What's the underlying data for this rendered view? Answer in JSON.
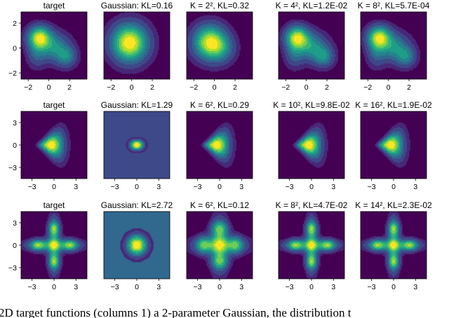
{
  "caption": "2D target functions (columns 1) a 2-parameter Gaussian, the distribution t",
  "colors": {
    "viridis": [
      "#440154",
      "#482878",
      "#3e4989",
      "#31688e",
      "#26828e",
      "#1f9e89",
      "#35b779",
      "#6ece58",
      "#b5de2b",
      "#fde725"
    ]
  },
  "chart_data": [
    {
      "type": "heatmap",
      "row": 1,
      "xlim": [
        -2.7,
        3.7
      ],
      "ylim": [
        -2.5,
        2.9
      ],
      "xticks": [
        -2,
        0,
        2
      ],
      "yticks": [
        -2,
        0,
        2
      ],
      "panels": [
        {
          "title": "target",
          "blobs": [
            {
              "cx": -0.9,
              "cy": 0.85,
              "sx": 0.75,
              "sy": 0.6,
              "a": 1.0
            },
            {
              "cx": 0.5,
              "cy": 0.05,
              "sx": 1.0,
              "sy": 0.75,
              "a": 0.5
            },
            {
              "cx": 1.7,
              "cy": -0.7,
              "sx": 0.65,
              "sy": 0.55,
              "a": 0.42
            },
            {
              "cx": -1.2,
              "cy": -0.4,
              "sx": 0.6,
              "sy": 0.75,
              "a": 0.28
            }
          ]
        },
        {
          "title": "Gaussian: KL=0.16",
          "blobs": [
            {
              "cx": -0.2,
              "cy": 0.4,
              "sx": 1.15,
              "sy": 1.0,
              "a": 1.0
            }
          ]
        },
        {
          "title": "K = 2², KL=0.32",
          "blobs": [
            {
              "cx": -0.45,
              "cy": 0.45,
              "sx": 1.05,
              "sy": 0.9,
              "a": 1.0
            },
            {
              "cx": 0.7,
              "cy": -0.1,
              "sx": 0.85,
              "sy": 0.75,
              "a": 0.3
            }
          ]
        },
        {
          "title": "K = 4², KL=1.2E-02",
          "blobs": [
            {
              "cx": -0.9,
              "cy": 0.85,
              "sx": 0.75,
              "sy": 0.6,
              "a": 1.0
            },
            {
              "cx": 0.5,
              "cy": 0.05,
              "sx": 1.0,
              "sy": 0.75,
              "a": 0.55
            },
            {
              "cx": 1.7,
              "cy": -0.7,
              "sx": 0.65,
              "sy": 0.55,
              "a": 0.45
            },
            {
              "cx": -1.2,
              "cy": -0.4,
              "sx": 0.6,
              "sy": 0.75,
              "a": 0.3
            }
          ]
        },
        {
          "title": "K = 8², KL=5.7E-04",
          "blobs": [
            {
              "cx": -0.9,
              "cy": 0.85,
              "sx": 0.75,
              "sy": 0.6,
              "a": 1.0
            },
            {
              "cx": 0.5,
              "cy": 0.05,
              "sx": 1.0,
              "sy": 0.75,
              "a": 0.5
            },
            {
              "cx": 1.7,
              "cy": -0.7,
              "sx": 0.65,
              "sy": 0.55,
              "a": 0.42
            },
            {
              "cx": -1.2,
              "cy": -0.4,
              "sx": 0.6,
              "sy": 0.75,
              "a": 0.28
            }
          ]
        }
      ]
    },
    {
      "type": "heatmap",
      "row": 2,
      "xlim": [
        -4.5,
        4.5
      ],
      "ylim": [
        -4.5,
        4.5
      ],
      "xticks": [
        -3,
        0,
        3
      ],
      "yticks": [
        -3,
        0,
        3
      ],
      "panels": [
        {
          "title": "target",
          "shape": "cone"
        },
        {
          "title": "Gaussian: KL=1.29",
          "blobs": [
            {
              "cx": 0.0,
              "cy": 0.0,
              "sx": 0.6,
              "sy": 0.45,
              "a": 1.0
            }
          ],
          "bgLevel": 2
        },
        {
          "title": "K = 6², KL=0.29",
          "shape": "cone"
        },
        {
          "title": "K = 10², KL=9.8E-02",
          "shape": "cone"
        },
        {
          "title": "K = 16², KL=1.9E-02",
          "shape": "cone"
        }
      ]
    },
    {
      "type": "heatmap",
      "row": 3,
      "xlim": [
        -4.5,
        4.5
      ],
      "ylim": [
        -4.5,
        4.5
      ],
      "xticks": [
        -3,
        0,
        3
      ],
      "yticks": [
        -3,
        0,
        3
      ],
      "panels": [
        {
          "title": "target",
          "shape": "cross"
        },
        {
          "title": "Gaussian: KL=2.72",
          "blobs": [
            {
              "cx": 0.0,
              "cy": 0.0,
              "sx": 0.9,
              "sy": 0.9,
              "a": 1.0
            }
          ],
          "bgLevel": 3
        },
        {
          "title": "K = 6², KL=0.12",
          "shape": "cross_soft"
        },
        {
          "title": "K = 8², KL=4.7E-02",
          "shape": "cross"
        },
        {
          "title": "K = 14², KL=2.3E-02",
          "shape": "cross"
        }
      ]
    }
  ]
}
